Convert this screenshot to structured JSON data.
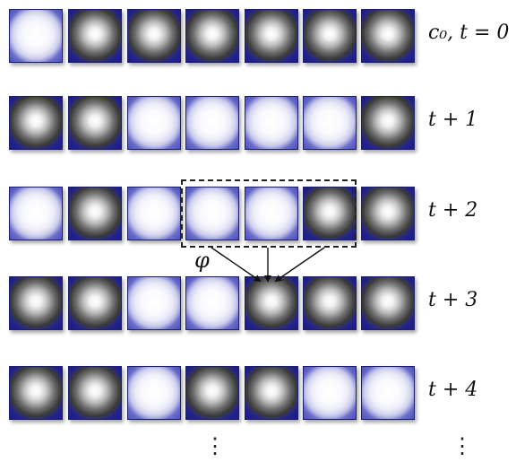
{
  "rows": [
    {
      "label": "c₀, t = 0",
      "states": [
        1,
        0,
        0,
        0,
        0,
        0,
        0
      ]
    },
    {
      "label": "t + 1",
      "states": [
        0,
        0,
        1,
        1,
        1,
        1,
        0
      ]
    },
    {
      "label": "t + 2",
      "states": [
        1,
        0,
        1,
        1,
        1,
        0,
        0
      ]
    },
    {
      "label": "t + 3",
      "states": [
        0,
        0,
        1,
        1,
        0,
        0,
        0
      ]
    },
    {
      "label": "t + 4",
      "states": [
        0,
        0,
        1,
        0,
        0,
        1,
        1
      ]
    }
  ],
  "neighborhood": {
    "row": 2,
    "cells": [
      3,
      4,
      5
    ],
    "target_row": 3,
    "target_cell": 4
  },
  "rule_label": "φ",
  "continuation": "⋮",
  "colors": {
    "on_cell": "#eeeefa",
    "off_cell": "#2a2a9a",
    "cell_border": "#1d1f6a",
    "annotation": "#222222"
  }
}
